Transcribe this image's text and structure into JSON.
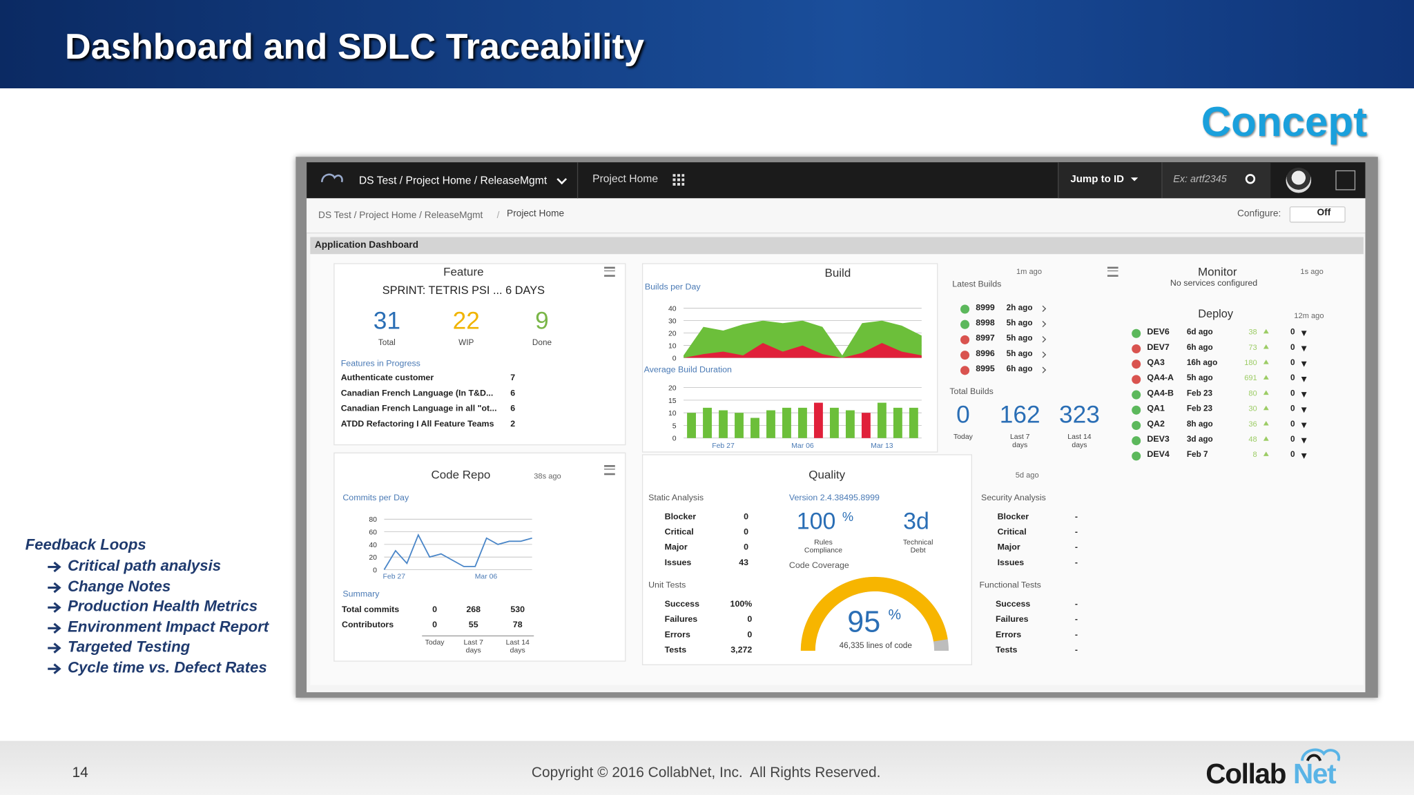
{
  "header": {
    "title": "Dashboard and SDLC Traceability",
    "tag": "Concept"
  },
  "sidebar": {
    "title": "Feedback Loops",
    "items": [
      "Critical path analysis",
      "Change Notes",
      "Production Health Metrics",
      "Environment Impact Report",
      "Targeted Testing",
      "Cycle time vs. Defect Rates"
    ]
  },
  "footer": {
    "page": "14",
    "copyright": "Copyright © 2016 CollabNet, Inc.  All Rights Reserved.",
    "logo": [
      "Collab",
      "Net"
    ]
  },
  "app": {
    "nav": {
      "project": "DS Test / Project Home / ReleaseMgmt",
      "home": "Project Home",
      "jump": "Jump to ID",
      "search": "Ex: artf2345"
    },
    "breadcrumb": {
      "path": "DS Test / Project Home / ReleaseMgmt",
      "separator": "/",
      "current": "Project Home",
      "configure": "Configure:",
      "toggle": "Off"
    },
    "dashboard_title": "Application Dashboard",
    "status_colors": {
      "pass": "#5cb85c",
      "fail": "#d9534f"
    },
    "feature": {
      "title": "Feature",
      "sprint": "SPRINT: TETRIS PSI ... 6 DAYS",
      "stats": [
        {
          "value": 31,
          "label": "Total",
          "color": "#2a6eb5"
        },
        {
          "value": 22,
          "label": "WIP",
          "color": "#f0b400"
        },
        {
          "value": 9,
          "label": "Done",
          "color": "#7ab648"
        }
      ],
      "in_progress_title": "Features in Progress",
      "in_progress": [
        {
          "name": "Authenticate customer",
          "count": 7
        },
        {
          "name": "Canadian French Language (In T&D...",
          "count": 6
        },
        {
          "name": "Canadian French Language in all \"ot...",
          "count": 6
        },
        {
          "name": "ATDD Refactoring I All Feature Teams",
          "count": 2
        }
      ]
    },
    "build": {
      "title": "Build",
      "per_day": {
        "type": "area",
        "title": "Builds per Day",
        "ylim": [
          0,
          40
        ],
        "yticks": [
          0,
          10,
          20,
          30,
          40
        ],
        "series": [
          {
            "name": "Success",
            "color": "#6cbf3a",
            "values": [
              2,
              25,
              22,
              27,
              30,
              28,
              30,
              25,
              2,
              28,
              30,
              26,
              18
            ]
          },
          {
            "name": "Failed",
            "color": "#e0203a",
            "values": [
              0,
              3,
              5,
              2,
              12,
              5,
              10,
              3,
              0,
              4,
              12,
              5,
              2
            ]
          }
        ]
      },
      "duration": {
        "type": "bar",
        "title": "Average Build Duration",
        "ylim": [
          0,
          20
        ],
        "yticks": [
          0,
          5,
          10,
          15,
          20
        ],
        "categories": [
          "Feb 27",
          "Mar 06",
          "Mar 13"
        ],
        "values": [
          10,
          12,
          11,
          10,
          8,
          11,
          12,
          12,
          14,
          12,
          11,
          10,
          14,
          12,
          12
        ],
        "colors": [
          "#6cbf3a",
          "#6cbf3a",
          "#6cbf3a",
          "#6cbf3a",
          "#6cbf3a",
          "#6cbf3a",
          "#6cbf3a",
          "#6cbf3a",
          "#e0203a",
          "#6cbf3a",
          "#6cbf3a",
          "#e0203a",
          "#6cbf3a",
          "#6cbf3a",
          "#6cbf3a"
        ]
      },
      "latest_age": "1m ago",
      "latest_title": "Latest Builds",
      "latest": [
        {
          "id": "8999",
          "time": "2h ago",
          "status": "pass"
        },
        {
          "id": "8998",
          "time": "5h ago",
          "status": "pass"
        },
        {
          "id": "8997",
          "time": "5h ago",
          "status": "fail"
        },
        {
          "id": "8996",
          "time": "5h ago",
          "status": "fail"
        },
        {
          "id": "8995",
          "time": "6h ago",
          "status": "fail"
        }
      ],
      "totals_title": "Total Builds",
      "totals": [
        {
          "value": 0,
          "label": "Today"
        },
        {
          "value": 162,
          "label": "Last 7 days"
        },
        {
          "value": 323,
          "label": "Last 14 days"
        }
      ]
    },
    "monitor": {
      "title": "Monitor",
      "age": "1s ago",
      "note": "No services configured"
    },
    "deploy": {
      "title": "Deploy",
      "age": "12m ago",
      "rows": [
        {
          "env": "DEV6",
          "time": "6d ago",
          "up": 38,
          "down": 0,
          "status": "pass"
        },
        {
          "env": "DEV7",
          "time": "6h ago",
          "up": 73,
          "down": 0,
          "status": "fail"
        },
        {
          "env": "QA3",
          "time": "16h ago",
          "up": 180,
          "down": 0,
          "status": "fail"
        },
        {
          "env": "QA4-A",
          "time": "5h ago",
          "up": 691,
          "down": 0,
          "status": "fail"
        },
        {
          "env": "QA4-B",
          "time": "Feb 23",
          "up": 80,
          "down": 0,
          "status": "pass"
        },
        {
          "env": "QA1",
          "time": "Feb 23",
          "up": 30,
          "down": 0,
          "status": "pass"
        },
        {
          "env": "QA2",
          "time": "8h ago",
          "up": 36,
          "down": 0,
          "status": "pass"
        },
        {
          "env": "DEV3",
          "time": "3d ago",
          "up": 48,
          "down": 0,
          "status": "pass"
        },
        {
          "env": "DEV4",
          "time": "Feb 7",
          "up": 8,
          "down": 0,
          "status": "pass"
        }
      ]
    },
    "code_repo": {
      "title": "Code Repo",
      "age": "38s ago",
      "commits": {
        "type": "line",
        "title": "Commits per Day",
        "ylim": [
          0,
          80
        ],
        "yticks": [
          0,
          20,
          40,
          60,
          80
        ],
        "color": "#4a86c8",
        "categories": [
          "Feb 27",
          "Mar 06"
        ],
        "values": [
          0,
          30,
          10,
          55,
          20,
          25,
          15,
          5,
          5,
          50,
          40,
          45,
          45,
          50
        ]
      },
      "summary_title": "Summary",
      "summary": [
        {
          "label": "Total commits",
          "values": [
            0,
            268,
            530
          ]
        },
        {
          "label": "Contributors",
          "values": [
            0,
            55,
            78
          ]
        }
      ],
      "columns": [
        "Today",
        "Last 7 days",
        "Last 14 days"
      ]
    },
    "quality": {
      "title": "Quality",
      "age": "5d ago",
      "static_title": "Static Analysis",
      "static": [
        {
          "label": "Blocker",
          "value": "0"
        },
        {
          "label": "Critical",
          "value": "0"
        },
        {
          "label": "Major",
          "value": "0"
        },
        {
          "label": "Issues",
          "value": "43"
        }
      ],
      "version": "Version 2.4.38495.8999",
      "compliance": {
        "value": "100",
        "unit": "%",
        "label": "Rules Compliance"
      },
      "debt": {
        "value": "3d",
        "label": "Technical Debt"
      },
      "coverage_title": "Code Coverage",
      "unit_title": "Unit Tests",
      "unit": [
        {
          "label": "Success",
          "value": "100%"
        },
        {
          "label": "Failures",
          "value": "0"
        },
        {
          "label": "Errors",
          "value": "0"
        },
        {
          "label": "Tests",
          "value": "3,272"
        }
      ],
      "coverage": {
        "percent": 95,
        "unit": "%",
        "lim": [
          0,
          100
        ],
        "lines": "46,335 lines of code",
        "color": "#f7b500",
        "track": "#bdbdbd"
      },
      "security_title": "Security Analysis",
      "security": [
        {
          "label": "Blocker",
          "value": "-"
        },
        {
          "label": "Critical",
          "value": "-"
        },
        {
          "label": "Major",
          "value": "-"
        },
        {
          "label": "Issues",
          "value": "-"
        }
      ],
      "functional_title": "Functional Tests",
      "functional": [
        {
          "label": "Success",
          "value": "-"
        },
        {
          "label": "Failures",
          "value": "-"
        },
        {
          "label": "Errors",
          "value": "-"
        },
        {
          "label": "Tests",
          "value": "-"
        }
      ]
    }
  }
}
